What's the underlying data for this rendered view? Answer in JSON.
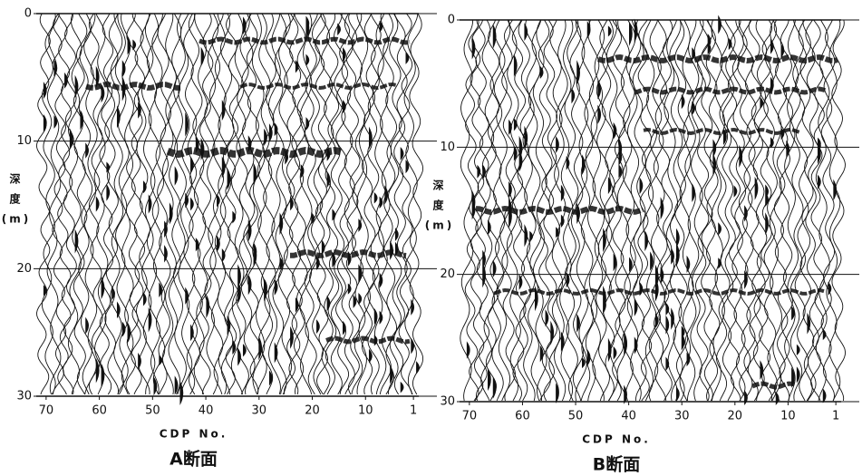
{
  "chart_data": [
    {
      "type": "seismic",
      "caption": "A断面",
      "xlabel": "CDP No.",
      "ylabel_lines": [
        "深",
        "度",
        "(m)"
      ],
      "xlim": [
        71,
        0
      ],
      "ylim": [
        0,
        30
      ],
      "xticks": [
        70,
        60,
        50,
        40,
        30,
        20,
        10,
        1
      ],
      "yticks": [
        0,
        10,
        20,
        30
      ],
      "grid": true
    },
    {
      "type": "seismic",
      "caption": "B断面",
      "xlabel": "CDP No.",
      "ylabel_lines": [
        "深",
        "度",
        "(m)"
      ],
      "xlim": [
        71,
        0
      ],
      "ylim": [
        0,
        30
      ],
      "xticks": [
        70,
        60,
        50,
        40,
        30,
        20,
        10,
        1
      ],
      "yticks": [
        0,
        10,
        20,
        30
      ],
      "grid": true
    }
  ]
}
